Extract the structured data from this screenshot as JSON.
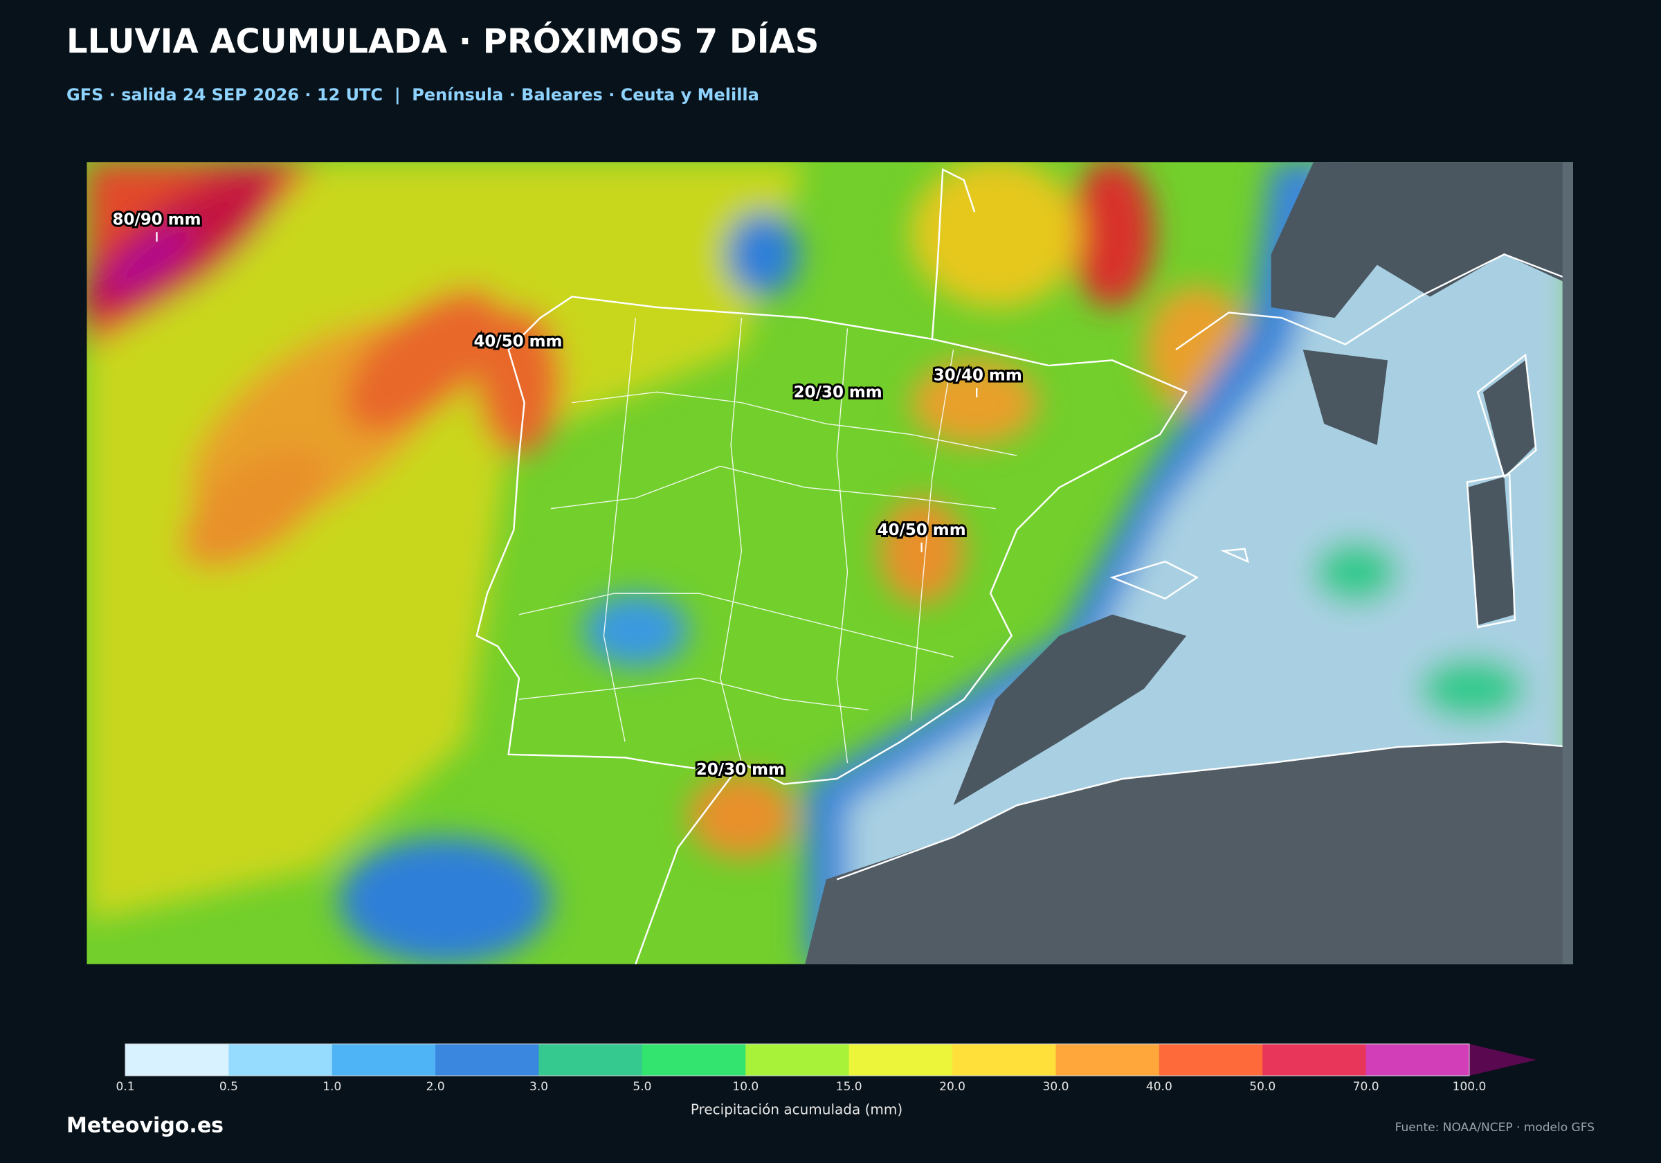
{
  "header": {
    "title": "LLUVIA ACUMULADA · PRÓXIMOS 7 DÍAS",
    "subtitle": "GFS · salida 24 SEP 2026 · 12 UTC  |  Península · Baleares · Ceuta y Melilla"
  },
  "map": {
    "labels": [
      "80/90 mm",
      "40/50 mm",
      "20/30 mm",
      "30/40 mm",
      "40/50 mm",
      "20/30 mm"
    ]
  },
  "legend": {
    "title": "Precipitación acumulada (mm)",
    "ticks": [
      "0.1",
      "0.5",
      "1.0",
      "2.0",
      "3.0",
      "5.0",
      "10.0",
      "15.0",
      "20.0",
      "30.0",
      "40.0",
      "50.0",
      "70.0",
      "100.0"
    ],
    "colors": [
      "#d8f3ff",
      "#96dcff",
      "#4fb4f5",
      "#3a87e0",
      "#35c98f",
      "#33e56e",
      "#a8f23a",
      "#ecf53a",
      "#ffe03a",
      "#ffa73a",
      "#ff6a3a",
      "#e8365a",
      "#d23eb8"
    ],
    "extend_color": "#5a0850"
  },
  "footer": {
    "brand": "Meteovigo.es",
    "source": "Fuente: NOAA/NCEP · modelo GFS"
  }
}
